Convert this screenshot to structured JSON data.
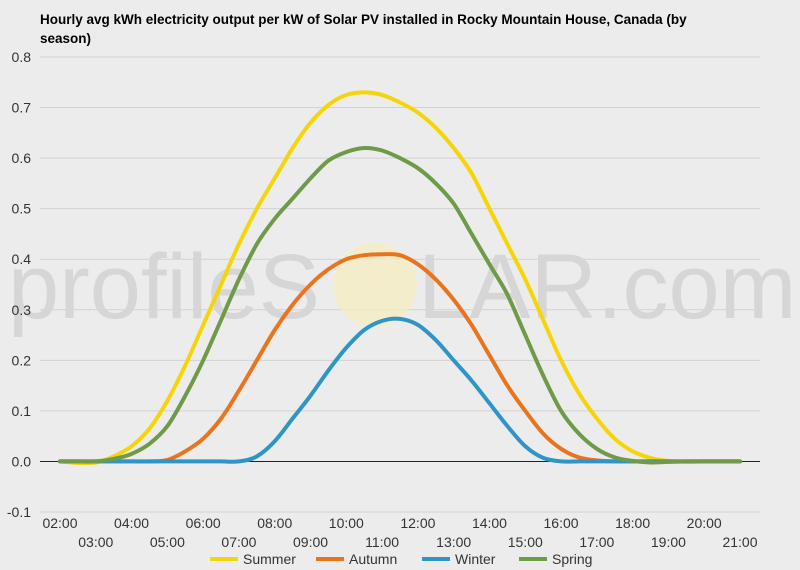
{
  "chart_data": {
    "type": "line",
    "title_line1": "Hourly avg kWh electricity output per kW of Solar PV installed in Rocky Mountain House, Canada (by",
    "title_line2": "season)",
    "watermark": {
      "left": "profileS",
      "right": "LAR.com"
    },
    "xlabel": "",
    "ylabel": "",
    "ylim": [
      -0.1,
      0.8
    ],
    "y_ticks": [
      "-0.1",
      "0.0",
      "0.1",
      "0.2",
      "0.3",
      "0.4",
      "0.5",
      "0.6",
      "0.7",
      "0.8"
    ],
    "x_ticks": [
      "02:00",
      "03:00",
      "04:00",
      "05:00",
      "06:00",
      "07:00",
      "08:00",
      "09:00",
      "10:00",
      "11:00",
      "12:00",
      "13:00",
      "14:00",
      "15:00",
      "16:00",
      "17:00",
      "18:00",
      "19:00",
      "20:00",
      "21:00"
    ],
    "x_hours": [
      2,
      2.5,
      3,
      3.5,
      4,
      4.5,
      5,
      5.5,
      6,
      6.5,
      7,
      7.5,
      8,
      8.5,
      9,
      9.5,
      10,
      10.5,
      11,
      11.5,
      12,
      12.5,
      13,
      13.5,
      14,
      14.5,
      15,
      15.5,
      16,
      16.5,
      17,
      17.5,
      18,
      18.5,
      19,
      19.5,
      20,
      20.5,
      21
    ],
    "grid": true,
    "legend_position": "bottom",
    "series": [
      {
        "name": "Summer",
        "color": "#f5d50a",
        "values": [
          0.0,
          -0.003,
          -0.002,
          0.01,
          0.03,
          0.065,
          0.12,
          0.19,
          0.27,
          0.35,
          0.43,
          0.5,
          0.56,
          0.62,
          0.67,
          0.705,
          0.725,
          0.73,
          0.725,
          0.71,
          0.69,
          0.66,
          0.62,
          0.57,
          0.5,
          0.43,
          0.36,
          0.28,
          0.2,
          0.135,
          0.085,
          0.045,
          0.02,
          0.007,
          0.001,
          -0.001,
          0.0,
          0.0,
          0.0
        ]
      },
      {
        "name": "Autumn",
        "color": "#e8741e",
        "values": [
          0.0,
          0.0,
          0.0,
          0.0,
          0.0,
          0.0,
          0.003,
          0.02,
          0.045,
          0.085,
          0.14,
          0.2,
          0.26,
          0.31,
          0.35,
          0.38,
          0.4,
          0.408,
          0.41,
          0.408,
          0.39,
          0.36,
          0.32,
          0.27,
          0.21,
          0.15,
          0.1,
          0.055,
          0.025,
          0.008,
          0.002,
          0.0,
          0.0,
          0.0,
          0.0,
          0.0,
          0.0,
          0.0,
          0.0
        ]
      },
      {
        "name": "Winter",
        "color": "#2e95c6",
        "values": [
          0.0,
          0.0,
          0.0,
          0.0,
          0.0,
          0.0,
          0.0,
          0.0,
          0.0,
          0.0,
          0.0,
          0.01,
          0.04,
          0.085,
          0.13,
          0.18,
          0.225,
          0.26,
          0.278,
          0.282,
          0.27,
          0.24,
          0.2,
          0.16,
          0.115,
          0.07,
          0.03,
          0.007,
          0.0,
          0.0,
          0.0,
          0.0,
          0.0,
          0.0,
          0.0,
          0.0,
          0.0,
          0.0,
          0.0
        ]
      },
      {
        "name": "Spring",
        "color": "#6e9a4a",
        "values": [
          0.0,
          0.0,
          0.0,
          0.005,
          0.015,
          0.035,
          0.07,
          0.13,
          0.2,
          0.28,
          0.36,
          0.43,
          0.48,
          0.52,
          0.56,
          0.595,
          0.612,
          0.62,
          0.615,
          0.6,
          0.58,
          0.55,
          0.51,
          0.45,
          0.39,
          0.33,
          0.25,
          0.17,
          0.1,
          0.055,
          0.025,
          0.008,
          0.001,
          -0.002,
          -0.001,
          0.0,
          0.0,
          0.0,
          0.0
        ]
      }
    ]
  }
}
